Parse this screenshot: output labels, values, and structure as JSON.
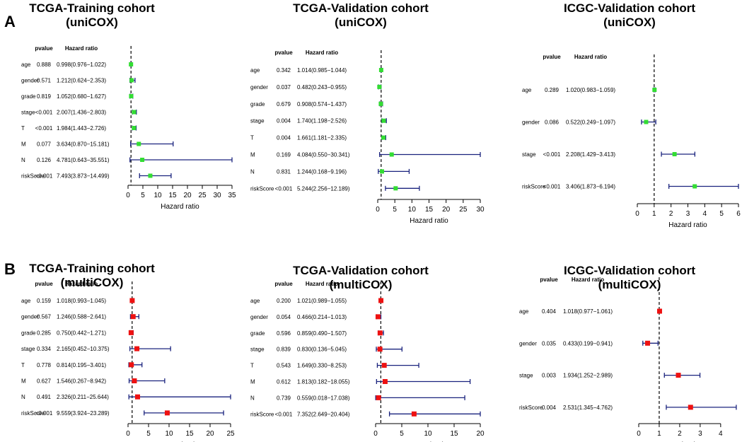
{
  "panel_letters": [
    "A",
    "B"
  ],
  "column_headers": {
    "pvalue": "pvalue",
    "hazard_ratio": "Hazard ratio"
  },
  "colors": {
    "uni_marker": "#33dd33",
    "multi_marker": "#ee1111",
    "ci_line": "#1a237e",
    "ref_line": "#000000"
  },
  "chart_data": [
    {
      "type": "forest",
      "title": [
        "TCGA-Training cohort",
        "(uniCOX)"
      ],
      "xlabel": "Hazard ratio",
      "xlim": [
        0,
        35
      ],
      "xticks": [
        0,
        5,
        10,
        15,
        20,
        25,
        30,
        35
      ],
      "ref_line": 1,
      "rows": [
        {
          "name": "age",
          "pvalue": "0.888",
          "hr_text": "0.998(0.976−1.022)",
          "hr": 0.998,
          "low": 0.976,
          "high": 1.022
        },
        {
          "name": "gender",
          "pvalue": "0.571",
          "hr_text": "1.212(0.624−2.353)",
          "hr": 1.212,
          "low": 0.624,
          "high": 2.353
        },
        {
          "name": "grade",
          "pvalue": "0.819",
          "hr_text": "1.052(0.680−1.627)",
          "hr": 1.052,
          "low": 0.68,
          "high": 1.627
        },
        {
          "name": "stage",
          "pvalue": "<0.001",
          "hr_text": "2.007(1.436−2.803)",
          "hr": 2.007,
          "low": 1.436,
          "high": 2.803
        },
        {
          "name": "T",
          "pvalue": "<0.001",
          "hr_text": "1.984(1.443−2.726)",
          "hr": 1.984,
          "low": 1.443,
          "high": 2.726
        },
        {
          "name": "M",
          "pvalue": "0.077",
          "hr_text": "3.634(0.870−15.181)",
          "hr": 3.634,
          "low": 0.87,
          "high": 15.181
        },
        {
          "name": "N",
          "pvalue": "0.126",
          "hr_text": "4.781(0.643−35.551)",
          "hr": 4.781,
          "low": 0.643,
          "high": 35.551
        },
        {
          "name": "riskScore",
          "pvalue": "<0.001",
          "hr_text": "7.493(3.873−14.499)",
          "hr": 7.493,
          "low": 3.873,
          "high": 14.499
        }
      ]
    },
    {
      "type": "forest",
      "title": [
        "TCGA-Validation cohort",
        "(uniCOX)"
      ],
      "xlabel": "Hazard ratio",
      "xlim": [
        0,
        30
      ],
      "xticks": [
        0,
        5,
        10,
        15,
        20,
        25,
        30
      ],
      "ref_line": 1,
      "rows": [
        {
          "name": "age",
          "pvalue": "0.342",
          "hr_text": "1.014(0.985−1.044)",
          "hr": 1.014,
          "low": 0.985,
          "high": 1.044
        },
        {
          "name": "gender",
          "pvalue": "0.037",
          "hr_text": "0.482(0.243−0.955)",
          "hr": 0.482,
          "low": 0.243,
          "high": 0.955
        },
        {
          "name": "grade",
          "pvalue": "0.679",
          "hr_text": "0.908(0.574−1.437)",
          "hr": 0.908,
          "low": 0.574,
          "high": 1.437
        },
        {
          "name": "stage",
          "pvalue": "0.004",
          "hr_text": "1.740(1.198−2.526)",
          "hr": 1.74,
          "low": 1.198,
          "high": 2.526
        },
        {
          "name": "T",
          "pvalue": "0.004",
          "hr_text": "1.661(1.181−2.335)",
          "hr": 1.661,
          "low": 1.181,
          "high": 2.335
        },
        {
          "name": "M",
          "pvalue": "0.169",
          "hr_text": "4.084(0.550−30.341)",
          "hr": 4.084,
          "low": 0.55,
          "high": 30.341
        },
        {
          "name": "N",
          "pvalue": "0.831",
          "hr_text": "1.244(0.168−9.196)",
          "hr": 1.244,
          "low": 0.168,
          "high": 9.196
        },
        {
          "name": "riskScore",
          "pvalue": "<0.001",
          "hr_text": "5.244(2.256−12.189)",
          "hr": 5.244,
          "low": 2.256,
          "high": 12.189
        }
      ]
    },
    {
      "type": "forest",
      "title": [
        "ICGC-Validation cohort",
        "(uniCOX)"
      ],
      "xlabel": "Hazard ratio",
      "xlim": [
        0,
        6
      ],
      "xticks": [
        0,
        1,
        2,
        3,
        4,
        5,
        6
      ],
      "ref_line": 1,
      "rows": [
        {
          "name": "age",
          "pvalue": "0.289",
          "hr_text": "1.020(0.983−1.059)",
          "hr": 1.02,
          "low": 0.983,
          "high": 1.059
        },
        {
          "name": "gender",
          "pvalue": "0.086",
          "hr_text": "0.522(0.249−1.097)",
          "hr": 0.522,
          "low": 0.249,
          "high": 1.097
        },
        {
          "name": "stage",
          "pvalue": "<0.001",
          "hr_text": "2.208(1.429−3.413)",
          "hr": 2.208,
          "low": 1.429,
          "high": 3.413
        },
        {
          "name": "riskScore",
          "pvalue": "<0.001",
          "hr_text": "3.406(1.873−6.194)",
          "hr": 3.406,
          "low": 1.873,
          "high": 6.194
        }
      ]
    },
    {
      "type": "forest",
      "title": [
        "TCGA-Training cohort",
        "(multiCOX)"
      ],
      "xlabel": "Hazard ratio",
      "xlim": [
        0,
        25
      ],
      "xticks": [
        0,
        5,
        10,
        15,
        20,
        25
      ],
      "ref_line": 1,
      "rows": [
        {
          "name": "age",
          "pvalue": "0.159",
          "hr_text": "1.018(0.993−1.045)",
          "hr": 1.018,
          "low": 0.993,
          "high": 1.045
        },
        {
          "name": "gender",
          "pvalue": "0.567",
          "hr_text": "1.246(0.588−2.641)",
          "hr": 1.246,
          "low": 0.588,
          "high": 2.641
        },
        {
          "name": "grade",
          "pvalue": "0.285",
          "hr_text": "0.750(0.442−1.271)",
          "hr": 0.75,
          "low": 0.442,
          "high": 1.271
        },
        {
          "name": "stage",
          "pvalue": "0.334",
          "hr_text": "2.165(0.452−10.375)",
          "hr": 2.165,
          "low": 0.452,
          "high": 10.375
        },
        {
          "name": "T",
          "pvalue": "0.778",
          "hr_text": "0.814(0.195−3.401)",
          "hr": 0.814,
          "low": 0.195,
          "high": 3.401
        },
        {
          "name": "M",
          "pvalue": "0.627",
          "hr_text": "1.546(0.267−8.942)",
          "hr": 1.546,
          "low": 0.267,
          "high": 8.942
        },
        {
          "name": "N",
          "pvalue": "0.491",
          "hr_text": "2.326(0.211−25.644)",
          "hr": 2.326,
          "low": 0.211,
          "high": 25.644
        },
        {
          "name": "riskScore",
          "pvalue": "<0.001",
          "hr_text": "9.559(3.924−23.289)",
          "hr": 9.559,
          "low": 3.924,
          "high": 23.289
        }
      ]
    },
    {
      "type": "forest",
      "title": [
        "TCGA-Validation cohort",
        "(multiCOX)"
      ],
      "xlabel": "Hazard ratio",
      "xlim": [
        0,
        20
      ],
      "xticks": [
        0,
        5,
        10,
        15,
        20
      ],
      "ref_line": 1,
      "rows": [
        {
          "name": "age",
          "pvalue": "0.200",
          "hr_text": "1.021(0.989−1.055)",
          "hr": 1.021,
          "low": 0.989,
          "high": 1.055
        },
        {
          "name": "gender",
          "pvalue": "0.054",
          "hr_text": "0.466(0.214−1.013)",
          "hr": 0.466,
          "low": 0.214,
          "high": 1.013
        },
        {
          "name": "grade",
          "pvalue": "0.596",
          "hr_text": "0.859(0.490−1.507)",
          "hr": 0.859,
          "low": 0.49,
          "high": 1.507
        },
        {
          "name": "stage",
          "pvalue": "0.839",
          "hr_text": "0.830(0.136−5.045)",
          "hr": 0.83,
          "low": 0.136,
          "high": 5.045
        },
        {
          "name": "T",
          "pvalue": "0.543",
          "hr_text": "1.649(0.330−8.253)",
          "hr": 1.649,
          "low": 0.33,
          "high": 8.253
        },
        {
          "name": "M",
          "pvalue": "0.612",
          "hr_text": "1.813(0.182−18.055)",
          "hr": 1.813,
          "low": 0.182,
          "high": 18.055
        },
        {
          "name": "N",
          "pvalue": "0.739",
          "hr_text": "0.559(0.018−17.038)",
          "hr": 0.559,
          "low": 0.018,
          "high": 17.038
        },
        {
          "name": "riskScore",
          "pvalue": "<0.001",
          "hr_text": "7.352(2.649−20.404)",
          "hr": 7.352,
          "low": 2.649,
          "high": 20.404
        }
      ]
    },
    {
      "type": "forest",
      "title": [
        "ICGC-Validation cohort",
        "(multiCOX)"
      ],
      "xlabel": "Hazard ratio",
      "xlim": [
        0,
        4.8
      ],
      "xticks": [
        0,
        1,
        2,
        3,
        4
      ],
      "ref_line": 1,
      "rows": [
        {
          "name": "age",
          "pvalue": "0.404",
          "hr_text": "1.018(0.977−1.061)",
          "hr": 1.018,
          "low": 0.977,
          "high": 1.061
        },
        {
          "name": "gender",
          "pvalue": "0.035",
          "hr_text": "0.433(0.199−0.941)",
          "hr": 0.433,
          "low": 0.199,
          "high": 0.941
        },
        {
          "name": "stage",
          "pvalue": "0.003",
          "hr_text": "1.934(1.252−2.989)",
          "hr": 1.934,
          "low": 1.252,
          "high": 2.989
        },
        {
          "name": "riskScore",
          "pvalue": "0.004",
          "hr_text": "2.531(1.345−4.762)",
          "hr": 2.531,
          "low": 1.345,
          "high": 4.762
        }
      ]
    }
  ]
}
